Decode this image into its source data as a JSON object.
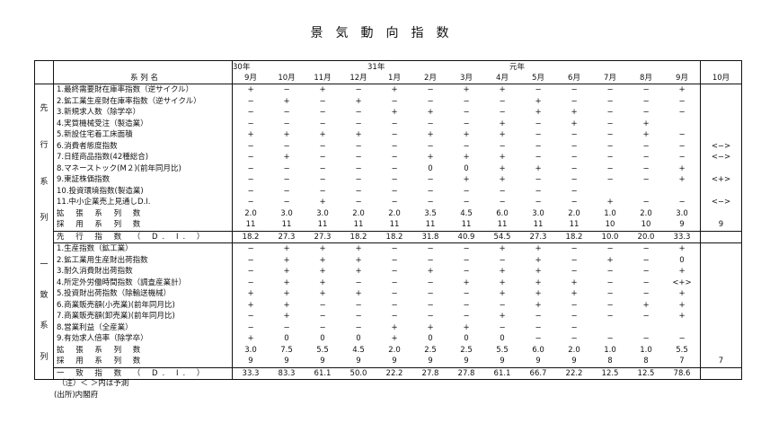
{
  "title": "景気動向指数",
  "header": {
    "series_name": "系 列 名",
    "years": [
      "30年",
      "31年",
      "元年"
    ],
    "months": [
      "9月",
      "10月",
      "11月",
      "12月",
      "1月",
      "2月",
      "3月",
      "4月",
      "5月",
      "6月",
      "7月",
      "8月",
      "9月"
    ],
    "forecast_month": "10月"
  },
  "leading": {
    "section_label": [
      "先",
      "行",
      "系",
      "列"
    ],
    "rows": [
      {
        "name": "1.最終需要財在庫率指数（逆サイクル）",
        "v": [
          "+",
          "−",
          "+",
          "−",
          "+",
          "−",
          "+",
          "+",
          "−",
          "−",
          "−",
          "−",
          "+"
        ],
        "f": ""
      },
      {
        "name": "2.鉱工業生産財在庫率指数（逆サイクル）",
        "v": [
          "−",
          "+",
          "−",
          "+",
          "−",
          "−",
          "−",
          "−",
          "+",
          "−",
          "−",
          "−",
          "−"
        ],
        "f": ""
      },
      {
        "name": "3.新規求人数（除学卒）",
        "v": [
          "−",
          "−",
          "−",
          "−",
          "+",
          "+",
          "−",
          "−",
          "+",
          "+",
          "−",
          "−",
          "−"
        ],
        "f": ""
      },
      {
        "name": "4.実質機械受注（製造業）",
        "v": [
          "−",
          "−",
          "−",
          "−",
          "−",
          "−",
          "−",
          "+",
          "−",
          "+",
          "−",
          "+",
          ""
        ],
        "f": ""
      },
      {
        "name": "5.新設住宅着工床面積",
        "v": [
          "+",
          "+",
          "+",
          "+",
          "−",
          "+",
          "+",
          "+",
          "−",
          "−",
          "−",
          "+",
          "−"
        ],
        "f": ""
      },
      {
        "name": "6.消費者態度指数",
        "v": [
          "−",
          "−",
          "−",
          "−",
          "−",
          "−",
          "−",
          "−",
          "−",
          "−",
          "−",
          "−",
          "−"
        ],
        "f": "<−>"
      },
      {
        "name": "7.日経商品指数(42種総合)",
        "v": [
          "−",
          "+",
          "−",
          "−",
          "−",
          "+",
          "+",
          "+",
          "−",
          "−",
          "−",
          "−",
          "−"
        ],
        "f": "<−>"
      },
      {
        "name": "8.マネーストック(M２)(前年同月比)",
        "v": [
          "−",
          "−",
          "−",
          "−",
          "−",
          "0",
          "0",
          "+",
          "+",
          "−",
          "−",
          "−",
          "+"
        ],
        "f": ""
      },
      {
        "name": "9.東証株価指数",
        "v": [
          "−",
          "−",
          "−",
          "−",
          "−",
          "−",
          "+",
          "+",
          "−",
          "−",
          "−",
          "−",
          "+"
        ],
        "f": "<+>"
      },
      {
        "name": "10.投資環境指数(製造業)",
        "v": [
          "−",
          "−",
          "−",
          "−",
          "−",
          "−",
          "−",
          "−",
          "−",
          "−",
          "",
          "",
          ""
        ],
        "f": ""
      },
      {
        "name": "11.中小企業売上見通しD.I.",
        "v": [
          "−",
          "−",
          "+",
          "−",
          "−",
          "−",
          "−",
          "−",
          "−",
          "−",
          "+",
          "−",
          "−"
        ],
        "f": "<−>"
      }
    ],
    "expand": {
      "label": "拡 張 系 列 数",
      "v": [
        "2.0",
        "3.0",
        "3.0",
        "2.0",
        "2.0",
        "3.5",
        "4.5",
        "6.0",
        "3.0",
        "2.0",
        "1.0",
        "2.0",
        "3.0"
      ],
      "f": ""
    },
    "adopt": {
      "label": "採 用 系 列 数",
      "v": [
        "11",
        "11",
        "11",
        "11",
        "11",
        "11",
        "11",
        "11",
        "11",
        "11",
        "10",
        "10",
        "9"
      ],
      "f": "9"
    },
    "di": {
      "label": "先 行 指 数 （ D. I. ）",
      "v": [
        "18.2",
        "27.3",
        "27.3",
        "18.2",
        "18.2",
        "31.8",
        "40.9",
        "54.5",
        "27.3",
        "18.2",
        "10.0",
        "20.0",
        "33.3"
      ],
      "f": ""
    }
  },
  "coincident": {
    "section_label": [
      "一",
      "致",
      "系",
      "列"
    ],
    "rows": [
      {
        "name": "1.生産指数（鉱工業）",
        "v": [
          "−",
          "+",
          "+",
          "+",
          "−",
          "−",
          "−",
          "+",
          "+",
          "−",
          "−",
          "−",
          "+"
        ],
        "f": ""
      },
      {
        "name": "2.鉱工業用生産財出荷指数",
        "v": [
          "−",
          "+",
          "+",
          "+",
          "−",
          "−",
          "−",
          "−",
          "+",
          "−",
          "+",
          "−",
          "0"
        ],
        "f": ""
      },
      {
        "name": "3.耐久消費財出荷指数",
        "v": [
          "−",
          "+",
          "+",
          "+",
          "−",
          "+",
          "−",
          "+",
          "+",
          "−",
          "−",
          "−",
          "+"
        ],
        "f": ""
      },
      {
        "name": "4.所定外労働時間指数（調査産業計）",
        "v": [
          "−",
          "+",
          "+",
          "−",
          "−",
          "−",
          "+",
          "+",
          "+",
          "+",
          "−",
          "−",
          "<+>"
        ],
        "f": ""
      },
      {
        "name": "5.投資財出荷指数（除輸送機械）",
        "v": [
          "+",
          "+",
          "+",
          "+",
          "−",
          "−",
          "−",
          "+",
          "+",
          "+",
          "−",
          "−",
          "+"
        ],
        "f": ""
      },
      {
        "name": "6.商業販売額(小売業)(前年同月比)",
        "v": [
          "+",
          "+",
          "−",
          "−",
          "−",
          "−",
          "−",
          "−",
          "+",
          "−",
          "−",
          "+",
          "+"
        ],
        "f": ""
      },
      {
        "name": "7.商業販売額(卸売業)(前年同月比)",
        "v": [
          "−",
          "+",
          "−",
          "−",
          "−",
          "−",
          "−",
          "+",
          "−",
          "−",
          "−",
          "−",
          "+"
        ],
        "f": ""
      },
      {
        "name": "8.営業利益（全産業）",
        "v": [
          "−",
          "−",
          "−",
          "−",
          "+",
          "+",
          "+",
          "−",
          "−",
          "−",
          "",
          "",
          ""
        ],
        "f": ""
      },
      {
        "name": "9.有効求人倍率（除学卒）",
        "v": [
          "+",
          "0",
          "0",
          "0",
          "+",
          "0",
          "0",
          "0",
          "−",
          "−",
          "−",
          "−",
          "−"
        ],
        "f": ""
      }
    ],
    "expand": {
      "label": "拡 張 系 列 数",
      "v": [
        "3.0",
        "7.5",
        "5.5",
        "4.5",
        "2.0",
        "2.5",
        "2.5",
        "5.5",
        "6.0",
        "2.0",
        "1.0",
        "1.0",
        "5.5"
      ],
      "f": ""
    },
    "adopt": {
      "label": "採 用 系 列 数",
      "v": [
        "9",
        "9",
        "9",
        "9",
        "9",
        "9",
        "9",
        "9",
        "9",
        "9",
        "8",
        "8",
        "7"
      ],
      "f": "7"
    },
    "di": {
      "label": "一 致 指 数 （ D. I. ）",
      "v": [
        "33.3",
        "83.3",
        "61.1",
        "50.0",
        "22.2",
        "27.8",
        "27.8",
        "61.1",
        "66.7",
        "22.2",
        "12.5",
        "12.5",
        "78.6"
      ],
      "f": ""
    }
  },
  "notes": {
    "note": "（注）＜ ＞内は予測",
    "source": "(出所)内閣府"
  }
}
